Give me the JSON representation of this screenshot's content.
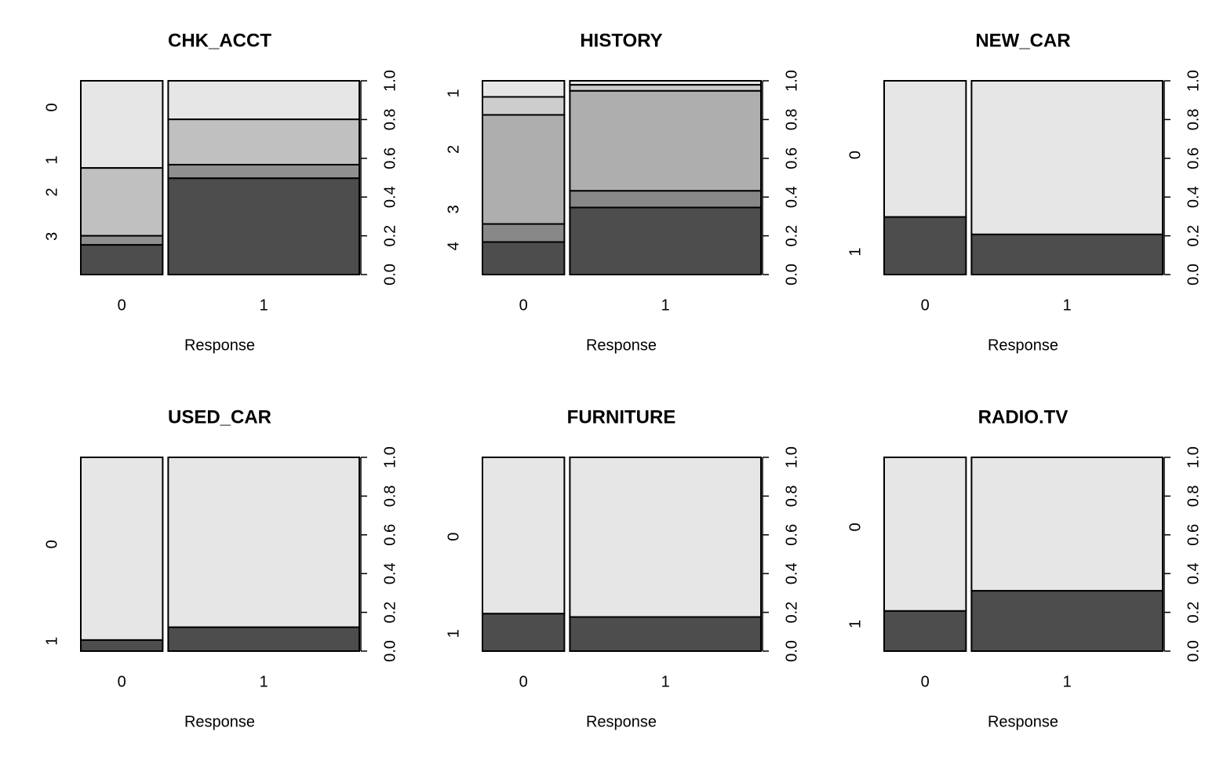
{
  "chart_data": [
    {
      "type": "spine",
      "title": "CHK_ACCT",
      "xlabel": "Response",
      "categories": [
        "0",
        "1"
      ],
      "widths": [
        0.3,
        0.7
      ],
      "series": [
        {
          "name": "0",
          "color": "#e6e6e6",
          "values": [
            0.45,
            0.199
          ]
        },
        {
          "name": "1",
          "color": "#c0c0c0",
          "values": [
            0.35,
            0.234
          ]
        },
        {
          "name": "2",
          "color": "#8f8f8f",
          "values": [
            0.047,
            0.07
          ]
        },
        {
          "name": "3",
          "color": "#4d4d4d",
          "values": [
            0.153,
            0.497
          ]
        }
      ],
      "ylim": [
        0,
        1
      ],
      "yticks": [
        {
          "value": 0,
          "label": "0.0"
        },
        0.2,
        0.4,
        0.6,
        0.8,
        {
          "value": 1,
          "label": "1.0"
        }
      ]
    },
    {
      "type": "spine",
      "title": "HISTORY",
      "xlabel": "Response",
      "categories": [
        "0",
        "1"
      ],
      "widths": [
        0.3,
        0.7
      ],
      "series": [
        {
          "name": null,
          "color": "#e6e6e6",
          "values": [
            0.083,
            0.021
          ]
        },
        {
          "name": "1",
          "color": "#cdcdcd",
          "values": [
            0.093,
            0.031
          ]
        },
        {
          "name": "2",
          "color": "#aeaeae",
          "values": [
            0.563,
            0.516
          ]
        },
        {
          "name": "3",
          "color": "#888888",
          "values": [
            0.093,
            0.086
          ]
        },
        {
          "name": "4",
          "color": "#4d4d4d",
          "values": [
            0.168,
            0.346
          ]
        }
      ],
      "ylim": [
        0,
        1
      ],
      "yticks": [
        {
          "value": 0,
          "label": "0.0"
        },
        0.2,
        0.4,
        0.6,
        0.8,
        {
          "value": 1,
          "label": "1.0"
        }
      ]
    },
    {
      "type": "spine",
      "title": "NEW_CAR",
      "xlabel": "Response",
      "categories": [
        "0",
        "1"
      ],
      "widths": [
        0.3,
        0.7
      ],
      "series": [
        {
          "name": "0",
          "color": "#e6e6e6",
          "values": [
            0.703,
            0.793
          ]
        },
        {
          "name": "1",
          "color": "#4d4d4d",
          "values": [
            0.297,
            0.207
          ]
        }
      ],
      "ylim": [
        0,
        1
      ],
      "yticks": [
        {
          "value": 0,
          "label": "0.0"
        },
        0.2,
        0.4,
        0.6,
        0.8,
        {
          "value": 1,
          "label": "1.0"
        }
      ]
    },
    {
      "type": "spine",
      "title": "USED_CAR",
      "xlabel": "Response",
      "categories": [
        "0",
        "1"
      ],
      "widths": [
        0.3,
        0.7
      ],
      "series": [
        {
          "name": "0",
          "color": "#e6e6e6",
          "values": [
            0.943,
            0.877
          ]
        },
        {
          "name": "1",
          "color": "#4d4d4d",
          "values": [
            0.057,
            0.123
          ]
        }
      ],
      "ylim": [
        0,
        1
      ],
      "yticks": [
        {
          "value": 0,
          "label": "0.0"
        },
        0.2,
        0.4,
        0.6,
        0.8,
        {
          "value": 1,
          "label": "1.0"
        }
      ]
    },
    {
      "type": "spine",
      "title": "FURNITURE",
      "xlabel": "Response",
      "categories": [
        "0",
        "1"
      ],
      "widths": [
        0.3,
        0.7
      ],
      "series": [
        {
          "name": "0",
          "color": "#e6e6e6",
          "values": [
            0.807,
            0.824
          ]
        },
        {
          "name": "1",
          "color": "#4d4d4d",
          "values": [
            0.193,
            0.176
          ]
        }
      ],
      "ylim": [
        0,
        1
      ],
      "yticks": [
        {
          "value": 0,
          "label": "0.0"
        },
        0.2,
        0.4,
        0.6,
        0.8,
        {
          "value": 1,
          "label": "1.0"
        }
      ]
    },
    {
      "type": "spine",
      "title": "RADIO.TV",
      "xlabel": "Response",
      "categories": [
        "0",
        "1"
      ],
      "widths": [
        0.3,
        0.7
      ],
      "series": [
        {
          "name": "0",
          "color": "#e6e6e6",
          "values": [
            0.793,
            0.689
          ]
        },
        {
          "name": "1",
          "color": "#4d4d4d",
          "values": [
            0.207,
            0.311
          ]
        }
      ],
      "ylim": [
        0,
        1
      ],
      "yticks": [
        {
          "value": 0,
          "label": "0.0"
        },
        0.2,
        0.4,
        0.6,
        0.8,
        {
          "value": 1,
          "label": "1.0"
        }
      ]
    }
  ]
}
